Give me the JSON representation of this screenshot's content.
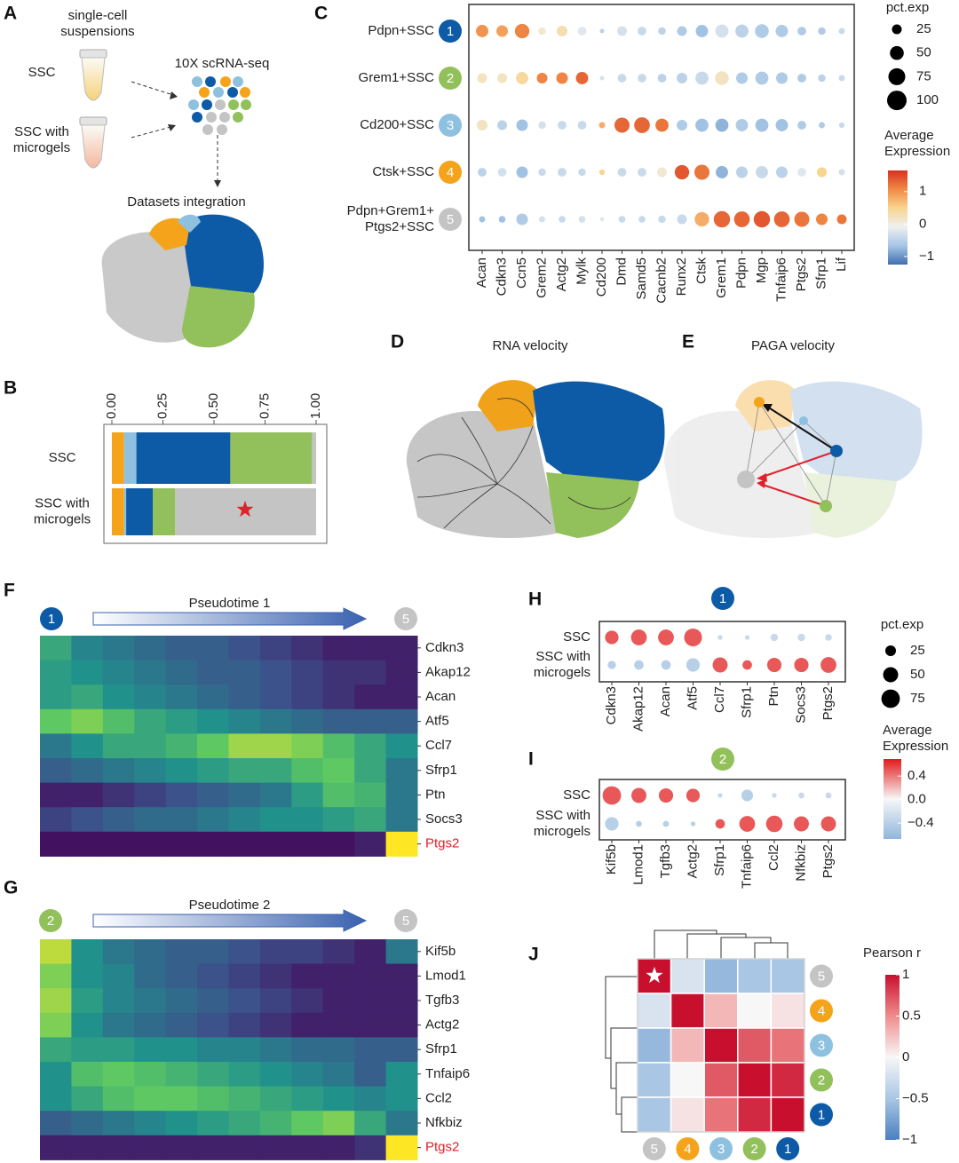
{
  "figure": {
    "panel_letters": [
      "A",
      "B",
      "C",
      "D",
      "E",
      "F",
      "G",
      "H",
      "I",
      "J"
    ]
  },
  "panel_a": {
    "suspensions": "single-cell\nsuspensions",
    "sample_1": "SSC",
    "sample_2": "SSC with\nmicrogels",
    "sequencing": "10X scRNA-seq",
    "integration": "Datasets integration"
  },
  "panel_d": {
    "title": "RNA velocity"
  },
  "panel_e": {
    "title": "PAGA velocity"
  },
  "chart_data": [
    {
      "type": "stacked_bar",
      "categories": [
        "SSC",
        "SSC with\nmicrogels"
      ],
      "series": [
        {
          "color": "#f5a31a",
          "values": [
            0.06,
            0.06
          ]
        },
        {
          "color": "#8ec1e0",
          "values": [
            0.06,
            0.01
          ]
        },
        {
          "color": "#0d5aa7",
          "values": [
            0.46,
            0.13
          ]
        },
        {
          "color": "#92c05a",
          "values": [
            0.4,
            0.11
          ]
        },
        {
          "color": "#c4c4c4",
          "values": [
            0.02,
            0.69
          ]
        }
      ],
      "xlim": [
        0,
        1
      ],
      "xticks": [
        {
          "value": 0,
          "label": "0.00"
        },
        {
          "value": 0.25,
          "label": "0.25"
        },
        {
          "value": 0.5,
          "label": "0.50"
        },
        {
          "value": 0.75,
          "label": "0.75"
        },
        {
          "value": 1,
          "label": "1.00"
        }
      ]
    },
    {
      "type": "dotplot",
      "categories": [
        "Acan",
        "Cdkn3",
        "Ccn5",
        "Grem2",
        "Actg2",
        "Mylk",
        "Cd200",
        "Dmd",
        "Samd5",
        "Cacnb2",
        "Runx2",
        "Ctsk",
        "Grem1",
        "Pdpn",
        "Mgp",
        "Tnfaip6",
        "Ptgs2",
        "Sfrp1",
        "Lif"
      ],
      "rows": [
        "Pdpn+SSC",
        "Grem1+SSC",
        "Cd200+SSC",
        "Ctsk+SSC",
        "Pdpn+Grem1+\nPtgs2+SSC"
      ],
      "row_badges": [
        "1",
        "2",
        "3",
        "4",
        "5"
      ],
      "badge_colors": [
        "#0d5aa7",
        "#92c05a",
        "#8ec1e0",
        "#f5a31a",
        "#c4c4c4"
      ],
      "values": [
        [
          1.0,
          0.9,
          1.1,
          0.1,
          0.3,
          -0.2,
          -0.5,
          -0.3,
          -0.4,
          -0.5,
          -0.6,
          -0.7,
          -0.3,
          -0.5,
          -0.6,
          -0.6,
          -0.6,
          -0.6,
          -0.4
        ],
        [
          0.2,
          0.2,
          0.4,
          1.1,
          1.1,
          1.3,
          -0.3,
          -0.4,
          -0.4,
          -0.5,
          -0.5,
          -0.4,
          0.2,
          -0.6,
          -0.6,
          -0.6,
          -0.6,
          -0.5,
          -0.4
        ],
        [
          0.2,
          -0.5,
          -0.7,
          -0.3,
          -0.4,
          -0.4,
          0.8,
          1.3,
          1.3,
          1.2,
          -0.6,
          -0.7,
          -0.8,
          -0.6,
          -0.7,
          -0.7,
          -0.6,
          -0.6,
          -0.4
        ],
        [
          -0.5,
          -0.3,
          -0.7,
          -0.4,
          -0.4,
          -0.4,
          0.5,
          -0.4,
          -0.4,
          0.1,
          1.4,
          1.2,
          -0.8,
          -0.5,
          -0.4,
          -0.5,
          -0.2,
          0.5,
          -0.3
        ],
        [
          -0.7,
          -0.7,
          -0.6,
          -0.3,
          -0.4,
          -0.3,
          -0.2,
          -0.4,
          -0.4,
          -0.4,
          -0.4,
          0.8,
          1.3,
          1.3,
          1.4,
          1.3,
          1.2,
          1.1,
          1.2
        ]
      ],
      "sizes": [
        [
          40,
          35,
          55,
          15,
          30,
          20,
          5,
          25,
          20,
          15,
          25,
          40,
          45,
          45,
          50,
          40,
          20,
          15,
          10
        ],
        [
          25,
          25,
          40,
          30,
          35,
          40,
          5,
          20,
          20,
          20,
          30,
          45,
          50,
          35,
          45,
          35,
          20,
          15,
          10
        ],
        [
          30,
          25,
          35,
          15,
          20,
          20,
          10,
          60,
          65,
          45,
          30,
          45,
          45,
          40,
          45,
          40,
          20,
          10,
          8
        ],
        [
          20,
          20,
          35,
          15,
          20,
          15,
          8,
          20,
          20,
          25,
          55,
          60,
          40,
          35,
          40,
          35,
          20,
          25,
          10
        ],
        [
          10,
          12,
          35,
          10,
          12,
          12,
          5,
          12,
          12,
          15,
          25,
          55,
          70,
          65,
          70,
          65,
          60,
          35,
          25
        ]
      ],
      "size_legend": {
        "title": "pct.exp",
        "ticks": [
          25,
          50,
          75,
          100
        ]
      },
      "color_scale": {
        "title": "Average\nExpression",
        "clim": [
          -1.25,
          1.65
        ],
        "ticks": [
          1,
          0,
          {
            "value": -1,
            "label": "−1"
          }
        ],
        "colors": [
          "#3f6fb0",
          "#a6c6e5",
          "#eef0f0",
          "#f9d590",
          "#f08a45",
          "#d7301f"
        ]
      }
    },
    {
      "type": "pseudotime",
      "title": "Pseudotime 1",
      "start": "1",
      "end": "5",
      "start_color": "#0d5aa7",
      "end_color": "#c4c4c4",
      "rows": [
        "Cdkn3",
        "Akap12",
        "Acan",
        "Atf5",
        "Ccl7",
        "Sfrp1",
        "Ptn",
        "Socs3",
        "Ptgs2"
      ],
      "highlight_row": 8,
      "highlight_color": "#e0202a",
      "clim": [
        0,
        1
      ],
      "colors": [
        "#440154",
        "#3b528b",
        "#21918c",
        "#5ec962",
        "#fde725"
      ],
      "values": [
        [
          0.6,
          0.45,
          0.4,
          0.35,
          0.3,
          0.3,
          0.25,
          0.2,
          0.15,
          0.1,
          0.1,
          0.1
        ],
        [
          0.55,
          0.5,
          0.45,
          0.4,
          0.35,
          0.3,
          0.3,
          0.25,
          0.2,
          0.15,
          0.15,
          0.1
        ],
        [
          0.55,
          0.6,
          0.5,
          0.45,
          0.4,
          0.35,
          0.3,
          0.25,
          0.2,
          0.15,
          0.1,
          0.1
        ],
        [
          0.75,
          0.8,
          0.7,
          0.6,
          0.55,
          0.5,
          0.45,
          0.4,
          0.35,
          0.3,
          0.3,
          0.3
        ],
        [
          0.4,
          0.5,
          0.6,
          0.6,
          0.65,
          0.75,
          0.85,
          0.85,
          0.8,
          0.7,
          0.6,
          0.5
        ],
        [
          0.3,
          0.35,
          0.4,
          0.45,
          0.5,
          0.55,
          0.6,
          0.6,
          0.7,
          0.75,
          0.6,
          0.4
        ],
        [
          0.1,
          0.1,
          0.15,
          0.2,
          0.25,
          0.3,
          0.35,
          0.4,
          0.55,
          0.7,
          0.65,
          0.4
        ],
        [
          0.2,
          0.25,
          0.3,
          0.35,
          0.35,
          0.4,
          0.45,
          0.5,
          0.5,
          0.55,
          0.6,
          0.4
        ],
        [
          0.05,
          0.05,
          0.05,
          0.05,
          0.05,
          0.05,
          0.05,
          0.05,
          0.05,
          0.05,
          0.1,
          1
        ]
      ]
    },
    {
      "type": "pseudotime",
      "title": "Pseudotime 2",
      "start": "2",
      "end": "5",
      "start_color": "#92c05a",
      "end_color": "#c4c4c4",
      "rows": [
        "Kif5b",
        "Lmod1",
        "Tgfb3",
        "Actg2",
        "Sfrp1",
        "Tnfaip6",
        "Ccl2",
        "Nfkbiz",
        "Ptgs2"
      ],
      "highlight_row": 8,
      "highlight_color": "#e0202a",
      "clim": [
        0,
        1
      ],
      "colors": [
        "#440154",
        "#3b528b",
        "#21918c",
        "#5ec962",
        "#fde725"
      ],
      "values": [
        [
          0.9,
          0.5,
          0.4,
          0.35,
          0.3,
          0.3,
          0.25,
          0.2,
          0.2,
          0.15,
          0.1,
          0.4
        ],
        [
          0.8,
          0.5,
          0.45,
          0.35,
          0.3,
          0.25,
          0.2,
          0.15,
          0.1,
          0.1,
          0.1,
          0.1
        ],
        [
          0.85,
          0.55,
          0.45,
          0.4,
          0.35,
          0.3,
          0.25,
          0.2,
          0.15,
          0.1,
          0.1,
          0.1
        ],
        [
          0.8,
          0.5,
          0.4,
          0.35,
          0.3,
          0.25,
          0.2,
          0.15,
          0.1,
          0.1,
          0.1,
          0.1
        ],
        [
          0.6,
          0.55,
          0.55,
          0.5,
          0.5,
          0.45,
          0.45,
          0.4,
          0.35,
          0.35,
          0.3,
          0.3
        ],
        [
          0.5,
          0.7,
          0.75,
          0.7,
          0.65,
          0.6,
          0.55,
          0.5,
          0.45,
          0.4,
          0.3,
          0.5
        ],
        [
          0.5,
          0.6,
          0.7,
          0.75,
          0.75,
          0.7,
          0.65,
          0.6,
          0.55,
          0.5,
          0.45,
          0.5
        ],
        [
          0.3,
          0.35,
          0.4,
          0.45,
          0.5,
          0.55,
          0.6,
          0.65,
          0.75,
          0.8,
          0.6,
          0.4
        ],
        [
          0.1,
          0.1,
          0.1,
          0.1,
          0.1,
          0.1,
          0.1,
          0.1,
          0.1,
          0.1,
          0.15,
          1
        ]
      ]
    },
    {
      "type": "dotplot",
      "badge": "1",
      "badge_color": "#0d5aa7",
      "categories": [
        "Cdkn3",
        "Akap12",
        "Acan",
        "Atf5",
        "Ccl7",
        "Sfrp1",
        "Ptn",
        "Socs3",
        "Ptgs2"
      ],
      "rows": [
        "SSC",
        "SSC with\nmicrogels"
      ],
      "values": [
        [
          0.5,
          0.5,
          0.5,
          0.5,
          -0.3,
          -0.3,
          -0.3,
          -0.3,
          -0.3
        ],
        [
          -0.4,
          -0.4,
          -0.4,
          -0.4,
          0.5,
          0.5,
          0.5,
          0.5,
          0.5
        ]
      ],
      "sizes": [
        [
          40,
          55,
          55,
          70,
          5,
          5,
          12,
          12,
          10
        ],
        [
          15,
          20,
          20,
          40,
          50,
          20,
          45,
          45,
          55
        ]
      ],
      "size_legend": {
        "title": "pct.exp",
        "ticks": [
          25,
          50,
          75
        ]
      },
      "color_scale": {
        "title": "Average\nExpression",
        "clim": [
          -0.67,
          0.69
        ],
        "ticks": [
          0.4,
          {
            "value": 0,
            "label": "0.0"
          },
          {
            "value": -0.4,
            "label": "−0.4"
          }
        ],
        "colors": [
          "#8fb6dc",
          "#f7f7f7",
          "#e31a1c"
        ]
      }
    },
    {
      "type": "dotplot",
      "badge": "2",
      "badge_color": "#92c05a",
      "categories": [
        "Kif5b",
        "Lmod1",
        "Tgfb3",
        "Actg2",
        "Sfrp1",
        "Tnfaip6",
        "Ccl2",
        "Nfkbiz",
        "Ptgs2"
      ],
      "rows": [
        "SSC",
        "SSC with\nmicrogels"
      ],
      "values": [
        [
          0.5,
          0.5,
          0.5,
          0.5,
          -0.3,
          -0.4,
          -0.3,
          -0.3,
          -0.3
        ],
        [
          -0.4,
          -0.4,
          -0.4,
          -0.4,
          0.5,
          0.5,
          0.5,
          0.5,
          0.5
        ]
      ],
      "sizes": [
        [
          75,
          50,
          45,
          40,
          5,
          30,
          5,
          8,
          8
        ],
        [
          40,
          8,
          8,
          5,
          20,
          55,
          60,
          50,
          50
        ]
      ],
      "color_scale": {
        "clim": [
          -0.67,
          0.69
        ],
        "colors": [
          "#8fb6dc",
          "#f7f7f7",
          "#e31a1c"
        ]
      }
    },
    {
      "type": "heatmap",
      "categories": [
        "5",
        "4",
        "3",
        "2",
        "1"
      ],
      "badge_colors": [
        "#c4c4c4",
        "#f5a31a",
        "#8ec1e0",
        "#92c05a",
        "#0d5aa7"
      ],
      "values": [
        [
          1,
          -0.2,
          -0.6,
          -0.5,
          -0.5
        ],
        [
          -0.2,
          1,
          0.3,
          0,
          0.1
        ],
        [
          -0.6,
          0.3,
          1,
          0.7,
          0.6
        ],
        [
          -0.5,
          0,
          0.7,
          1,
          0.9
        ],
        [
          -0.5,
          0.1,
          0.6,
          0.9,
          1
        ]
      ],
      "color_scale": {
        "title": "Pearson r",
        "clim": [
          -1,
          1
        ],
        "ticks": [
          1,
          0.5,
          0,
          {
            "value": -0.5,
            "label": "−0.5"
          },
          {
            "value": -1,
            "label": "−1"
          }
        ],
        "colors": [
          "#4a80c0",
          "#a9c6e4",
          "#f7f7f7",
          "#f08c8c",
          "#c8102e"
        ]
      }
    }
  ]
}
